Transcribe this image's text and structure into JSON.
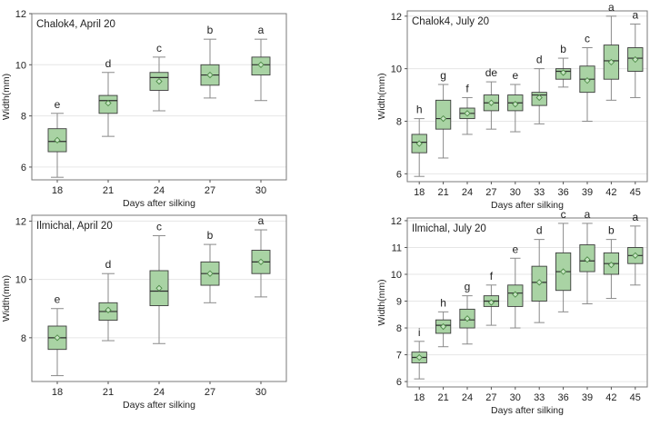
{
  "chart_data": [
    {
      "type": "box",
      "title": "Chalok4, April 20",
      "xlabel": "Days after silking",
      "ylabel": "Width(mm)",
      "categories": [
        "18",
        "21",
        "24",
        "27",
        "30"
      ],
      "ylim": [
        5.5,
        12
      ],
      "yticks": [
        6,
        8,
        10,
        12
      ],
      "grid": true,
      "boxes": [
        {
          "min": 5.6,
          "q1": 6.6,
          "median": 7.0,
          "q3": 7.5,
          "max": 8.1,
          "mean": 7.05
        },
        {
          "min": 7.2,
          "q1": 8.1,
          "median": 8.6,
          "q3": 8.8,
          "max": 9.7,
          "mean": 8.5
        },
        {
          "min": 8.2,
          "q1": 9.0,
          "median": 9.5,
          "q3": 9.7,
          "max": 10.3,
          "mean": 9.35
        },
        {
          "min": 8.7,
          "q1": 9.2,
          "median": 9.6,
          "q3": 10.0,
          "max": 11.0,
          "mean": 9.6
        },
        {
          "min": 8.6,
          "q1": 9.6,
          "median": 10.0,
          "q3": 10.3,
          "max": 11.0,
          "mean": 10.0
        }
      ],
      "letters": [
        "e",
        "d",
        "c",
        "b",
        "a"
      ]
    },
    {
      "type": "box",
      "title": "Chalok4, July 20",
      "xlabel": "Days after silking",
      "ylabel": "Width(mm)",
      "categories": [
        "18",
        "21",
        "24",
        "27",
        "30",
        "33",
        "36",
        "39",
        "42",
        "45"
      ],
      "ylim": [
        5.7,
        12.2
      ],
      "yticks": [
        6,
        8,
        10,
        12
      ],
      "grid": true,
      "boxes": [
        {
          "min": 5.9,
          "q1": 6.8,
          "median": 7.2,
          "q3": 7.5,
          "max": 8.1,
          "mean": 7.15
        },
        {
          "min": 6.6,
          "q1": 7.7,
          "median": 8.1,
          "q3": 8.8,
          "max": 9.4,
          "mean": 8.1
        },
        {
          "min": 7.5,
          "q1": 8.1,
          "median": 8.3,
          "q3": 8.5,
          "max": 8.9,
          "mean": 8.3
        },
        {
          "min": 7.7,
          "q1": 8.4,
          "median": 8.7,
          "q3": 9.0,
          "max": 9.5,
          "mean": 8.7
        },
        {
          "min": 7.6,
          "q1": 8.4,
          "median": 8.7,
          "q3": 9.0,
          "max": 9.4,
          "mean": 8.65
        },
        {
          "min": 7.9,
          "q1": 8.6,
          "median": 9.0,
          "q3": 9.1,
          "max": 10.0,
          "mean": 8.9
        },
        {
          "min": 9.3,
          "q1": 9.6,
          "median": 9.9,
          "q3": 10.0,
          "max": 10.4,
          "mean": 9.85
        },
        {
          "min": 8.0,
          "q1": 9.1,
          "median": 9.6,
          "q3": 10.1,
          "max": 10.8,
          "mean": 9.55
        },
        {
          "min": 8.8,
          "q1": 9.6,
          "median": 10.3,
          "q3": 10.9,
          "max": 12.0,
          "mean": 10.25
        },
        {
          "min": 8.9,
          "q1": 9.9,
          "median": 10.4,
          "q3": 10.8,
          "max": 11.7,
          "mean": 10.35
        }
      ],
      "letters": [
        "h",
        "g",
        "f",
        "de",
        "e",
        "d",
        "b",
        "c",
        "a",
        "a"
      ]
    },
    {
      "type": "box",
      "title": "Ilmichal, April 20",
      "xlabel": "Days after silking",
      "ylabel": "Width(mm)",
      "categories": [
        "18",
        "21",
        "24",
        "27",
        "30"
      ],
      "ylim": [
        6.5,
        12.2
      ],
      "yticks": [
        8,
        10,
        12
      ],
      "grid": true,
      "boxes": [
        {
          "min": 6.7,
          "q1": 7.6,
          "median": 8.0,
          "q3": 8.4,
          "max": 9.0,
          "mean": 8.0
        },
        {
          "min": 7.9,
          "q1": 8.6,
          "median": 8.9,
          "q3": 9.2,
          "max": 10.2,
          "mean": 8.95
        },
        {
          "min": 7.8,
          "q1": 9.1,
          "median": 9.6,
          "q3": 10.3,
          "max": 11.5,
          "mean": 9.7
        },
        {
          "min": 9.2,
          "q1": 9.8,
          "median": 10.2,
          "q3": 10.6,
          "max": 11.2,
          "mean": 10.2
        },
        {
          "min": 9.4,
          "q1": 10.2,
          "median": 10.6,
          "q3": 11.0,
          "max": 11.7,
          "mean": 10.6
        }
      ],
      "letters": [
        "e",
        "d",
        "c",
        "b",
        "a"
      ]
    },
    {
      "type": "box",
      "title": "Ilmichal, July 20",
      "xlabel": "Days after silking",
      "ylabel": "Width(mm)",
      "categories": [
        "18",
        "21",
        "24",
        "27",
        "30",
        "33",
        "36",
        "39",
        "42",
        "45"
      ],
      "ylim": [
        5.8,
        12.1
      ],
      "yticks": [
        6,
        7,
        8,
        9,
        10,
        11,
        12
      ],
      "grid": true,
      "boxes": [
        {
          "min": 6.1,
          "q1": 6.7,
          "median": 6.9,
          "q3": 7.1,
          "max": 7.5,
          "mean": 6.9
        },
        {
          "min": 7.3,
          "q1": 7.8,
          "median": 8.1,
          "q3": 8.3,
          "max": 8.6,
          "mean": 8.05
        },
        {
          "min": 7.4,
          "q1": 8.0,
          "median": 8.3,
          "q3": 8.7,
          "max": 9.2,
          "mean": 8.35
        },
        {
          "min": 8.1,
          "q1": 8.8,
          "median": 9.0,
          "q3": 9.2,
          "max": 9.6,
          "mean": 8.95
        },
        {
          "min": 8.0,
          "q1": 8.8,
          "median": 9.3,
          "q3": 9.6,
          "max": 10.6,
          "mean": 9.25
        },
        {
          "min": 8.2,
          "q1": 9.0,
          "median": 9.7,
          "q3": 10.3,
          "max": 11.3,
          "mean": 9.7
        },
        {
          "min": 8.6,
          "q1": 9.4,
          "median": 10.1,
          "q3": 10.8,
          "max": 11.9,
          "mean": 10.1
        },
        {
          "min": 8.9,
          "q1": 10.1,
          "median": 10.5,
          "q3": 11.1,
          "max": 11.9,
          "mean": 10.55
        },
        {
          "min": 9.1,
          "q1": 10.0,
          "median": 10.4,
          "q3": 10.8,
          "max": 11.3,
          "mean": 10.35
        },
        {
          "min": 9.6,
          "q1": 10.4,
          "median": 10.7,
          "q3": 11.0,
          "max": 11.8,
          "mean": 10.7
        }
      ],
      "letters": [
        "i",
        "h",
        "g",
        "f",
        "e",
        "d",
        "c",
        "a",
        "b",
        "a"
      ]
    }
  ],
  "colors": {
    "box_fill": "#a9d3a4",
    "mean_marker": "#4c8a46",
    "grid": "#e6e6e6",
    "frame": "#7a7a7a"
  }
}
